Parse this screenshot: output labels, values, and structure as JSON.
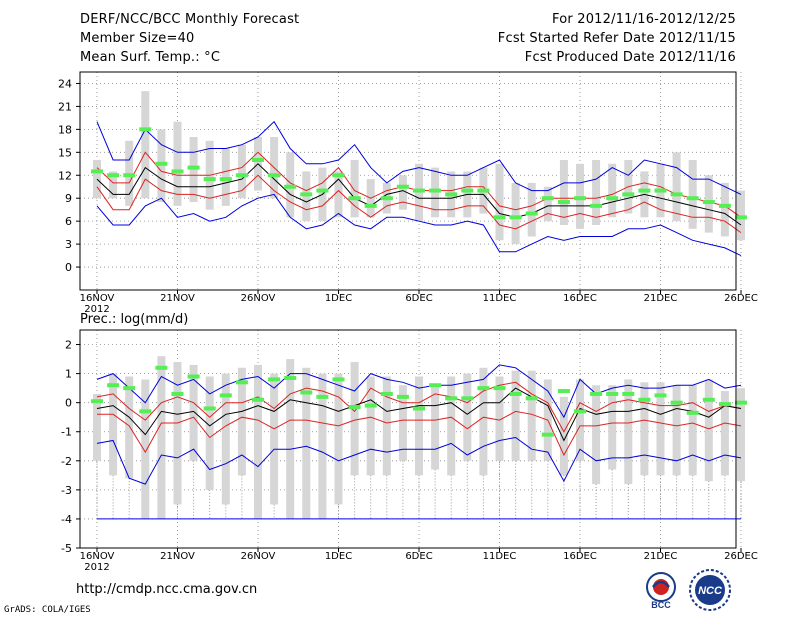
{
  "header": {
    "title": "DERF/NCC/BCC Monthly Forecast",
    "member_size": "Member Size=40",
    "var1_label": "Mean Surf. Temp.: °C",
    "period": "For 2012/11/16-2012/12/25",
    "refer_date": "Fcst Started Refer Date 2012/11/15",
    "produced_date": "Fcst Produced Date 2012/11/16"
  },
  "footer": {
    "url": "http://cmdp.ncc.cma.gov.cn",
    "credit": "GrADS: COLA/IGES",
    "logo_bcc": "BCC",
    "logo_ncc": "NCC"
  },
  "colors": {
    "ensemble_box": "#d6d6d6",
    "median_bar": "#55ee55",
    "mean_line": "#000000",
    "spread_line": "#dd2222",
    "extreme_line": "#0000dd",
    "grid": "#888888"
  },
  "chart_data": [
    {
      "type": "line",
      "title": "Mean Surf. Temp.: °C",
      "xlabel": "",
      "ylabel": "",
      "x_tick_labels": [
        "16NOV",
        "21NOV",
        "26NOV",
        "1DEC",
        "6DEC",
        "11DEC",
        "16DEC",
        "21DEC",
        "26DEC"
      ],
      "x_year_label": "2012",
      "ylim": [
        -3,
        25.5
      ],
      "yticks": [
        0,
        3,
        6,
        9,
        12,
        15,
        18,
        21,
        24
      ],
      "grid": true,
      "days": 40,
      "series": [
        {
          "name": "max",
          "values": [
            19,
            14,
            14,
            18,
            16,
            15,
            15,
            15.5,
            15.5,
            16,
            17,
            19,
            15.5,
            13.5,
            13.5,
            14,
            16,
            13,
            11,
            12.5,
            13,
            12.5,
            12,
            12,
            13,
            14,
            11,
            10,
            10,
            11,
            11,
            11.5,
            13,
            12,
            14,
            13.5,
            13,
            11.5,
            11.5,
            10.5,
            9.5
          ]
        },
        {
          "name": "upper",
          "values": [
            13,
            11,
            11,
            15,
            12.5,
            12,
            12,
            12,
            12.5,
            13,
            15,
            13,
            11,
            10,
            11,
            13,
            10,
            9,
            10,
            10.5,
            10,
            10,
            10,
            10.5,
            10.5,
            8,
            7.5,
            8,
            9,
            9,
            9,
            9,
            9.5,
            10.5,
            11,
            10.5,
            9.5,
            9,
            8.5,
            8,
            6.5
          ]
        },
        {
          "name": "mean",
          "values": [
            11.5,
            9.5,
            9.5,
            13,
            11.5,
            10.5,
            10.5,
            10.5,
            11,
            11.5,
            13.5,
            11.5,
            9.5,
            8.5,
            9.5,
            11.5,
            9,
            8,
            9.5,
            10,
            9,
            9,
            9,
            9.5,
            9.5,
            7,
            6.5,
            7,
            8,
            8,
            8,
            8,
            8.5,
            9,
            9.5,
            9,
            8.5,
            8,
            7.5,
            7,
            5.5
          ]
        },
        {
          "name": "lower",
          "values": [
            10.5,
            7.5,
            7.5,
            11.5,
            10,
            9.5,
            9.5,
            9,
            9.5,
            10,
            12,
            10,
            8.5,
            7.5,
            8,
            10,
            8,
            6.5,
            8,
            8.5,
            8,
            7.5,
            7.5,
            8,
            8,
            5.5,
            5,
            6,
            7,
            6.5,
            7,
            6.5,
            7,
            7.5,
            8.5,
            7.5,
            7,
            6.5,
            6.5,
            6,
            4.5
          ]
        },
        {
          "name": "min",
          "values": [
            8,
            5.5,
            5.5,
            8,
            9,
            6.5,
            7,
            6,
            6.5,
            8,
            9,
            9.5,
            6.5,
            5,
            5.5,
            7,
            5.5,
            5,
            6.5,
            6.5,
            6,
            5.5,
            5.5,
            6,
            5.5,
            2,
            2,
            3,
            4,
            3.5,
            4,
            4,
            4,
            5,
            5,
            5.5,
            4.5,
            3.5,
            3,
            2.5,
            1.5
          ]
        },
        {
          "name": "box_top",
          "values": [
            14,
            12.5,
            16.5,
            23,
            18,
            19,
            17,
            16.5,
            15.5,
            16,
            17,
            17,
            15,
            12.5,
            13,
            12.5,
            14,
            11.5,
            11,
            12,
            13.5,
            13,
            12.5,
            12.5,
            13,
            13.5,
            11,
            11,
            10.5,
            14,
            13.5,
            14,
            13.5,
            14,
            12.5,
            13.5,
            15,
            14,
            12,
            11,
            10
          ]
        },
        {
          "name": "box_bottom",
          "values": [
            9,
            9,
            8,
            9,
            8.5,
            8,
            8.5,
            7.5,
            8,
            9,
            10,
            9,
            6.5,
            6,
            6,
            6.5,
            6.5,
            6.5,
            7,
            7.5,
            6,
            6.5,
            6.5,
            6.5,
            7,
            3.5,
            3,
            4,
            6,
            5.5,
            5,
            5.5,
            6.5,
            7,
            6.5,
            6.5,
            6,
            5,
            4.5,
            4,
            3.5
          ]
        },
        {
          "name": "median",
          "values": [
            12.5,
            12,
            12,
            18,
            13.5,
            12.5,
            13,
            11.5,
            11.5,
            12,
            14,
            12,
            10.5,
            9.5,
            10,
            12,
            9,
            8,
            9,
            10.5,
            10,
            10,
            9.5,
            10,
            10,
            6.5,
            6.5,
            7,
            9,
            8.5,
            9,
            8,
            9,
            9.5,
            10,
            10,
            9.5,
            9,
            8.5,
            8,
            6.5
          ]
        }
      ]
    },
    {
      "type": "line",
      "title": "Prec.: log(mm/d)",
      "xlabel": "",
      "ylabel": "",
      "x_tick_labels": [
        "16NOV",
        "21NOV",
        "26NOV",
        "1DEC",
        "6DEC",
        "11DEC",
        "16DEC",
        "21DEC",
        "26DEC"
      ],
      "x_year_label": "2012",
      "ylim": [
        -5,
        2.5
      ],
      "yticks": [
        -5,
        -4,
        -3,
        -2,
        -1,
        0,
        1,
        2
      ],
      "grid": true,
      "days": 40,
      "floor_value": -4,
      "series": [
        {
          "name": "max",
          "values": [
            0.8,
            1,
            0.5,
            0,
            0.9,
            0.6,
            0.8,
            0.3,
            0.6,
            0.8,
            0.9,
            0.5,
            1,
            1,
            0.8,
            0.6,
            0.4,
            1,
            0.8,
            0.7,
            0.5,
            0.6,
            0.6,
            0.7,
            0.8,
            1.3,
            1.2,
            0.8,
            0.4,
            -0.5,
            0.8,
            0.3,
            0.5,
            0.6,
            0.5,
            0.5,
            0.6,
            0.6,
            0.8,
            0.5,
            0.6
          ]
        },
        {
          "name": "upper",
          "values": [
            0.2,
            0.3,
            -0.2,
            -0.6,
            0,
            0.2,
            0,
            -0.5,
            0,
            0,
            0.2,
            -0.2,
            0.3,
            0.5,
            0.4,
            0.2,
            -0.3,
            0.5,
            0.2,
            0,
            0,
            0.3,
            0.2,
            0,
            0.4,
            0.6,
            0.7,
            0.3,
            0,
            -1,
            0,
            -0.3,
            0,
            0.1,
            0,
            -0.1,
            -0.1,
            0,
            -0.3,
            -0.1,
            -0.2
          ]
        },
        {
          "name": "mean",
          "values": [
            -0.2,
            -0.1,
            -0.5,
            -1.1,
            -0.3,
            -0.4,
            -0.3,
            -0.8,
            -0.4,
            -0.3,
            -0.1,
            -0.3,
            0.1,
            0,
            -0.1,
            -0.3,
            -0.1,
            0.1,
            -0.3,
            -0.2,
            -0.1,
            -0.1,
            0,
            -0.4,
            0,
            0,
            0.5,
            0.2,
            -0.1,
            -1.3,
            -0.2,
            -0.4,
            -0.3,
            -0.3,
            -0.2,
            -0.4,
            -0.2,
            -0.3,
            -0.5,
            -0.1,
            -0.2
          ]
        },
        {
          "name": "lower",
          "values": [
            -0.4,
            -0.4,
            -0.8,
            -1.7,
            -0.7,
            -0.7,
            -0.5,
            -1.2,
            -0.8,
            -0.5,
            -0.6,
            -0.9,
            -0.6,
            -0.6,
            -0.7,
            -0.8,
            -0.6,
            -0.5,
            -0.7,
            -0.6,
            -0.6,
            -0.6,
            -0.5,
            -0.9,
            -0.5,
            -0.6,
            -0.3,
            -0.4,
            -0.6,
            -1.8,
            -0.8,
            -0.8,
            -0.7,
            -0.7,
            -0.6,
            -0.7,
            -0.8,
            -0.7,
            -0.9,
            -0.7,
            -0.8
          ]
        },
        {
          "name": "min",
          "values": [
            -1.4,
            -1.3,
            -2.6,
            -2.8,
            -1.8,
            -1.9,
            -1.6,
            -2.3,
            -2.1,
            -1.8,
            -2.2,
            -1.6,
            -1.6,
            -1.5,
            -1.7,
            -2,
            -1.8,
            -1.6,
            -1.7,
            -1.6,
            -1.6,
            -1.6,
            -1.4,
            -1.8,
            -1.5,
            -1.3,
            -1.2,
            -1.6,
            -1.7,
            -2.7,
            -1.6,
            -2,
            -1.9,
            -1.9,
            -1.8,
            -1.9,
            -2,
            -1.8,
            -2,
            -1.8,
            -1.9
          ]
        },
        {
          "name": "box_top",
          "values": [
            0.3,
            1,
            0.9,
            0.8,
            1.6,
            1.4,
            1.3,
            0.9,
            1,
            1.2,
            1.3,
            1,
            1.5,
            1.2,
            1,
            1,
            1.4,
            0.9,
            0.9,
            0.6,
            0.9,
            0.6,
            0.9,
            1,
            1.2,
            0.9,
            1.1,
            1.1,
            0.8,
            0.2,
            0.8,
            0.6,
            0.6,
            0.8,
            0.7,
            0.7,
            0.6,
            0.6,
            0.8,
            0.4,
            0.5
          ]
        },
        {
          "name": "box_bottom",
          "values": [
            -2,
            -2.5,
            -2.6,
            -4,
            -4,
            -3.5,
            -2,
            -3,
            -3.5,
            -2.5,
            -4,
            -3.5,
            -4,
            -4,
            -4,
            -3.5,
            -2.5,
            -2.5,
            -2.5,
            -2,
            -2.5,
            -2.3,
            -2.5,
            -2,
            -2.5,
            -2,
            -2,
            -2,
            -2,
            -2.5,
            -2,
            -2.8,
            -2.3,
            -2.8,
            -2.5,
            -2.5,
            -2.5,
            -2.5,
            -2.7,
            -2.5,
            -2.7
          ]
        },
        {
          "name": "median",
          "values": [
            0.05,
            0.6,
            0.5,
            -0.3,
            1.2,
            0.3,
            0.9,
            -0.2,
            0.25,
            0.7,
            0.1,
            0.8,
            0.85,
            0.35,
            0.2,
            0.8,
            -0.15,
            -0.1,
            0.3,
            0.2,
            -0.2,
            0.6,
            0.15,
            0.15,
            0.5,
            0.5,
            0.3,
            0.15,
            -1.1,
            0.4,
            -0.3,
            0.3,
            0.3,
            0.3,
            0.1,
            0.25,
            0,
            -0.35,
            0.1,
            -0.05,
            0
          ]
        }
      ]
    }
  ]
}
